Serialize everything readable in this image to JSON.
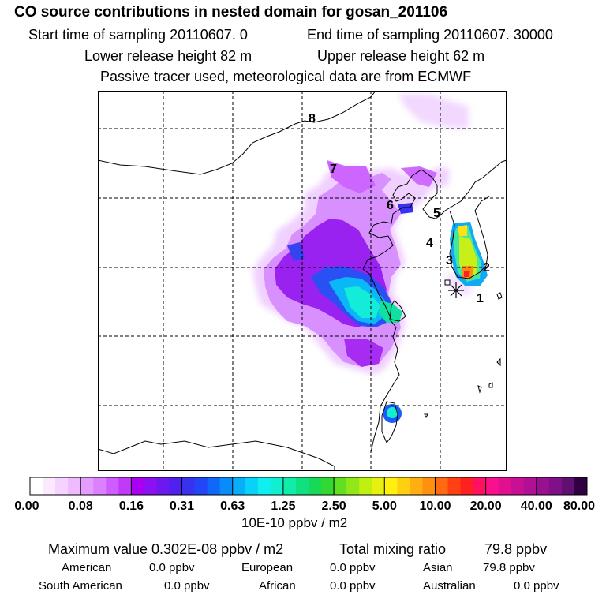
{
  "header": {
    "title": "CO  source contributions in nested domain for gosan_201106",
    "start_time": "Start time of sampling 20110607.     0",
    "end_time": "End time of sampling 20110607. 30000",
    "lower_release": "Lower release height   82 m",
    "upper_release": "Upper release height   62 m",
    "tracer_note": "Passive tracer used, meteorological data are from ECMWF"
  },
  "chart_data": {
    "type": "heatmap",
    "title": "CO  source contributions in nested domain for gosan_201106",
    "colorbar": {
      "tick_labels": [
        "0.00",
        "0.08",
        "0.16",
        "0.31",
        "0.63",
        "1.25",
        "2.50",
        "5.00",
        "10.00",
        "20.00",
        "40.00",
        "80.00"
      ],
      "unit": "10E-10 ppbv / m2",
      "colors": [
        "#ffffff",
        "#fbe9ff",
        "#f5d2ff",
        "#efbaff",
        "#e59cff",
        "#dc80ff",
        "#cf5cff",
        "#c03af8",
        "#a800f0",
        "#8c10f2",
        "#6e18f0",
        "#5020f0",
        "#3a30f0",
        "#2046f8",
        "#1068f8",
        "#0a8cf8",
        "#08aef8",
        "#08d2f8",
        "#10eef0",
        "#10f0d0",
        "#10ecaa",
        "#10e080",
        "#18d858",
        "#30d830",
        "#60e020",
        "#90e818",
        "#c0f010",
        "#e8f010",
        "#fff010",
        "#ffd010",
        "#ffb010",
        "#ff9010",
        "#ff6a10",
        "#ff4010",
        "#ff2020",
        "#ff1060",
        "#f8108c",
        "#e01090",
        "#c81094",
        "#b01096",
        "#981090",
        "#801088",
        "#601070",
        "#300040"
      ]
    },
    "site_labels": [
      "8",
      "7",
      "6",
      "5",
      "4",
      "3",
      "2",
      "1"
    ],
    "receptor": "gosan"
  },
  "stats": {
    "maximum": "Maximum value  0.302E-08 ppbv / m2",
    "total": "Total mixing ratio",
    "total_value": "79.8 ppbv"
  },
  "regions": [
    {
      "name": "American",
      "value": "0.0 ppbv"
    },
    {
      "name": "European",
      "value": "0.0 ppbv"
    },
    {
      "name": "Asian",
      "value": "79.8 ppbv"
    },
    {
      "name": "South American",
      "value": "0.0 ppbv"
    },
    {
      "name": "African",
      "value": "0.0 ppbv"
    },
    {
      "name": "Australian",
      "value": "0.0 ppbv"
    }
  ]
}
